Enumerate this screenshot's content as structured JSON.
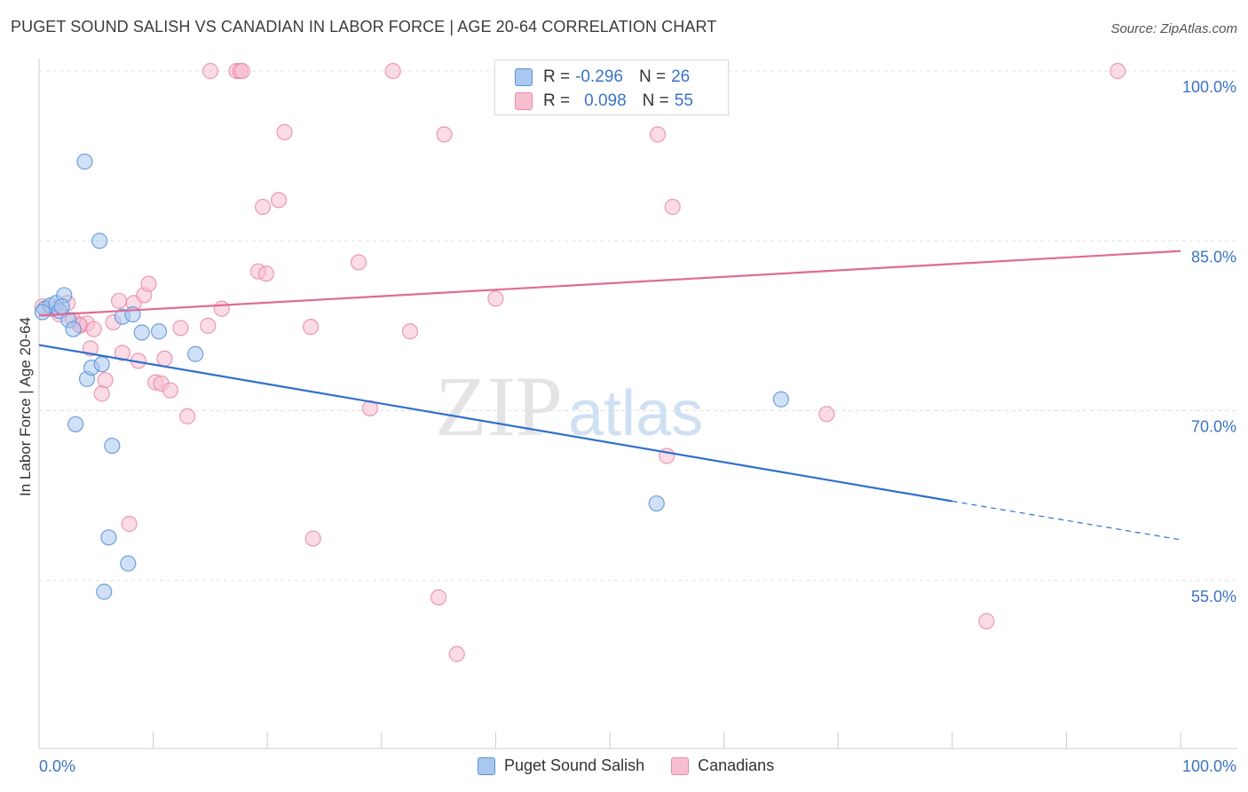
{
  "header": {
    "title": "PUGET SOUND SALISH VS CANADIAN IN LABOR FORCE | AGE 20-64 CORRELATION CHART",
    "source": "Source: ZipAtlas.com"
  },
  "legend": {
    "rows": [
      {
        "r_label": "R =",
        "r_value": "-0.296",
        "n_label": "N =",
        "n_value": "26"
      },
      {
        "r_label": "R =",
        "r_value": "0.098",
        "n_label": "N =",
        "n_value": "55"
      }
    ]
  },
  "colors": {
    "blue_fill": "#a9c8f0",
    "blue_stroke": "#5b8fd6",
    "blue_line": "#2f6fcc",
    "pink_fill": "#f7bed0",
    "pink_stroke": "#e68aa8",
    "pink_line": "#e06a94",
    "tick_label": "#3b73c5",
    "grid": "#e0e0e0"
  },
  "watermark": {
    "zip": "ZIP",
    "atlas": "atlas"
  },
  "chart_data": {
    "type": "scatter",
    "title": "PUGET SOUND SALISH VS CANADIAN IN LABOR FORCE | AGE 20-64 CORRELATION CHART",
    "xlabel": "",
    "ylabel": "In Labor Force | Age 20-64",
    "xlim": [
      0,
      100
    ],
    "ylim": [
      40,
      100
    ],
    "x_tick_labels": [
      "0.0%",
      "100.0%"
    ],
    "y_ticks": [
      55,
      70,
      85,
      100
    ],
    "y_tick_labels": [
      "55.0%",
      "70.0%",
      "85.0%",
      "100.0%"
    ],
    "grid": true,
    "legend_position": "top-center",
    "series": [
      {
        "name": "Puget Sound Salish",
        "r": -0.296,
        "n": 26,
        "points": [
          [
            0.5,
            79.0
          ],
          [
            1.0,
            79.3
          ],
          [
            1.5,
            79.5
          ],
          [
            1.8,
            78.8
          ],
          [
            2.2,
            80.2
          ],
          [
            2.6,
            78.0
          ],
          [
            3.0,
            77.2
          ],
          [
            3.2,
            68.8
          ],
          [
            4.0,
            92.0
          ],
          [
            4.2,
            72.8
          ],
          [
            4.6,
            73.8
          ],
          [
            5.3,
            85.0
          ],
          [
            5.5,
            74.1
          ],
          [
            5.7,
            54.0
          ],
          [
            6.1,
            58.8
          ],
          [
            6.4,
            66.9
          ],
          [
            7.3,
            78.3
          ],
          [
            7.8,
            56.5
          ],
          [
            8.2,
            78.5
          ],
          [
            9.0,
            76.9
          ],
          [
            10.5,
            77.0
          ],
          [
            13.7,
            75.0
          ],
          [
            54.1,
            61.8
          ],
          [
            65.0,
            71.0
          ],
          [
            0.3,
            78.7
          ],
          [
            2.0,
            79.2
          ]
        ],
        "trend": {
          "x": [
            0,
            80,
            100
          ],
          "y": [
            75.8,
            62.0,
            58.6
          ],
          "dashed_from": 80
        }
      },
      {
        "name": "Canadians",
        "r": 0.098,
        "n": 55,
        "points": [
          [
            0.3,
            79.2
          ],
          [
            1.2,
            79.0
          ],
          [
            1.8,
            78.5
          ],
          [
            2.5,
            79.5
          ],
          [
            3.0,
            78.0
          ],
          [
            3.6,
            77.5
          ],
          [
            4.2,
            77.7
          ],
          [
            4.5,
            75.5
          ],
          [
            4.8,
            77.2
          ],
          [
            5.5,
            71.5
          ],
          [
            5.8,
            72.7
          ],
          [
            6.5,
            77.8
          ],
          [
            7.0,
            79.7
          ],
          [
            7.3,
            75.1
          ],
          [
            7.9,
            60.0
          ],
          [
            8.3,
            79.5
          ],
          [
            8.7,
            74.4
          ],
          [
            9.2,
            80.2
          ],
          [
            9.6,
            81.2
          ],
          [
            10.2,
            72.5
          ],
          [
            10.7,
            72.4
          ],
          [
            11.0,
            74.6
          ],
          [
            11.5,
            71.8
          ],
          [
            12.4,
            77.3
          ],
          [
            13.0,
            69.5
          ],
          [
            14.8,
            77.5
          ],
          [
            15.0,
            100.0
          ],
          [
            16.0,
            79.0
          ],
          [
            17.3,
            100.0
          ],
          [
            17.6,
            100.0
          ],
          [
            17.8,
            100.0
          ],
          [
            19.2,
            82.3
          ],
          [
            19.6,
            88.0
          ],
          [
            19.9,
            82.1
          ],
          [
            21.0,
            88.6
          ],
          [
            21.5,
            94.6
          ],
          [
            23.8,
            77.4
          ],
          [
            24.0,
            58.7
          ],
          [
            28.0,
            83.1
          ],
          [
            29.0,
            70.2
          ],
          [
            31.0,
            100.0
          ],
          [
            32.5,
            77.0
          ],
          [
            35.0,
            53.5
          ],
          [
            35.5,
            94.4
          ],
          [
            36.6,
            48.5
          ],
          [
            40.0,
            79.9
          ],
          [
            42.0,
            100.0
          ],
          [
            54.2,
            94.4
          ],
          [
            55.0,
            66.0
          ],
          [
            55.5,
            88.0
          ],
          [
            69.0,
            69.7
          ],
          [
            83.0,
            51.4
          ],
          [
            94.5,
            100.0
          ],
          [
            1.0,
            79.0
          ],
          [
            3.5,
            77.6
          ]
        ],
        "trend": {
          "x": [
            0,
            100
          ],
          "y": [
            78.4,
            84.1
          ]
        }
      }
    ]
  },
  "bottom_legend": [
    "Puget Sound Salish",
    "Canadians"
  ]
}
